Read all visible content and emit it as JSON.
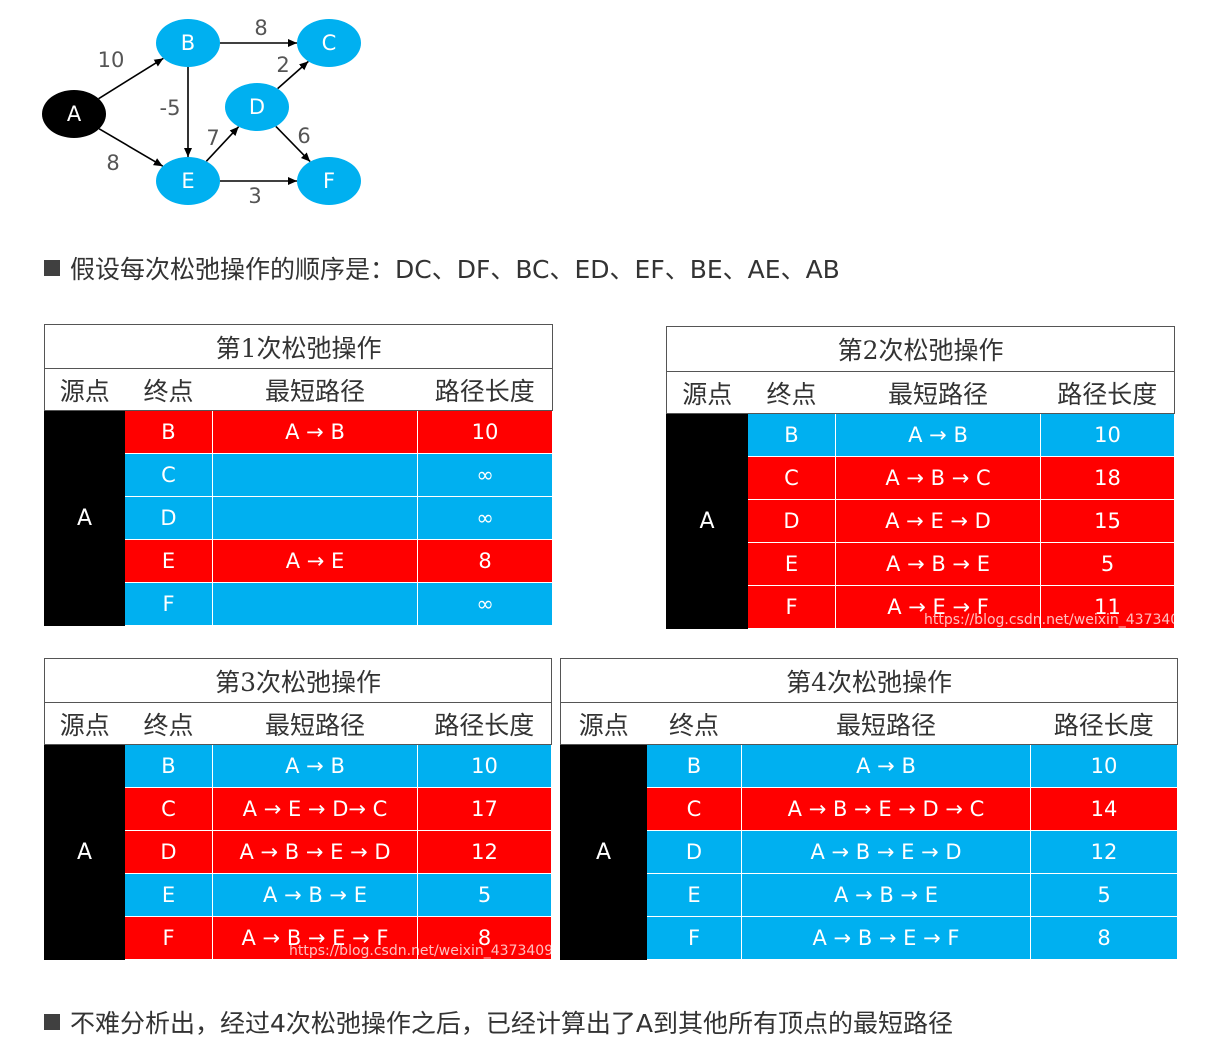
{
  "graph": {
    "nodes": [
      {
        "id": "A",
        "label": "A",
        "fill": "#000000"
      },
      {
        "id": "B",
        "label": "B",
        "fill": "#00b0f0"
      },
      {
        "id": "C",
        "label": "C",
        "fill": "#00b0f0"
      },
      {
        "id": "D",
        "label": "D",
        "fill": "#00b0f0"
      },
      {
        "id": "E",
        "label": "E",
        "fill": "#00b0f0"
      },
      {
        "id": "F",
        "label": "F",
        "fill": "#00b0f0"
      }
    ],
    "edges": [
      {
        "from": "A",
        "to": "B",
        "weight": "10"
      },
      {
        "from": "A",
        "to": "E",
        "weight": "8"
      },
      {
        "from": "B",
        "to": "C",
        "weight": "8"
      },
      {
        "from": "B",
        "to": "E",
        "weight": "-5"
      },
      {
        "from": "D",
        "to": "C",
        "weight": "2"
      },
      {
        "from": "E",
        "to": "D",
        "weight": "7"
      },
      {
        "from": "D",
        "to": "F",
        "weight": "6"
      },
      {
        "from": "E",
        "to": "F",
        "weight": "3"
      }
    ]
  },
  "bullet1": "假设每次松弛操作的顺序是：DC、DF、BC、ED、EF、BE、AE、AB",
  "bullet2": "不难分析出，经过4次松弛操作之后，已经计算出了A到其他所有顶点的最短路径",
  "headers": {
    "source": "源点",
    "target": "终点",
    "path": "最短路径",
    "length": "路径长度"
  },
  "colors": {
    "updated": "#ff0000",
    "unchanged": "#00b0f0",
    "source": "#000000"
  },
  "tables": [
    {
      "title": "第1次松弛操作",
      "source": "A",
      "rows": [
        {
          "target": "B",
          "path": "A → B",
          "length": "10",
          "color": "red"
        },
        {
          "target": "C",
          "path": "",
          "length": "∞",
          "color": "blue"
        },
        {
          "target": "D",
          "path": "",
          "length": "∞",
          "color": "blue"
        },
        {
          "target": "E",
          "path": "A → E",
          "length": "8",
          "color": "red"
        },
        {
          "target": "F",
          "path": "",
          "length": "∞",
          "color": "blue"
        }
      ]
    },
    {
      "title": "第2次松弛操作",
      "source": "A",
      "rows": [
        {
          "target": "B",
          "path": "A → B",
          "length": "10",
          "color": "blue"
        },
        {
          "target": "C",
          "path": "A → B → C",
          "length": "18",
          "color": "red"
        },
        {
          "target": "D",
          "path": "A → E → D",
          "length": "15",
          "color": "red"
        },
        {
          "target": "E",
          "path": "A → B → E",
          "length": "5",
          "color": "red"
        },
        {
          "target": "F",
          "path": "A → E → F",
          "length": "11",
          "color": "red"
        }
      ],
      "watermark": "https://blog.csdn.net/weixin_437340"
    },
    {
      "title": "第3次松弛操作",
      "source": "A",
      "rows": [
        {
          "target": "B",
          "path": "A → B",
          "length": "10",
          "color": "blue"
        },
        {
          "target": "C",
          "path": "A → E → D→ C",
          "length": "17",
          "color": "red"
        },
        {
          "target": "D",
          "path": "A → B → E → D",
          "length": "12",
          "color": "red"
        },
        {
          "target": "E",
          "path": "A → B → E",
          "length": "5",
          "color": "blue"
        },
        {
          "target": "F",
          "path": "A → B → E → F",
          "length": "8",
          "color": "red"
        }
      ],
      "watermark": "https://blog.csdn.net/weixin_4373409"
    },
    {
      "title": "第4次松弛操作",
      "source": "A",
      "rows": [
        {
          "target": "B",
          "path": "A → B",
          "length": "10",
          "color": "blue"
        },
        {
          "target": "C",
          "path": "A → B → E → D → C",
          "length": "14",
          "color": "red"
        },
        {
          "target": "D",
          "path": "A → B → E → D",
          "length": "12",
          "color": "blue"
        },
        {
          "target": "E",
          "path": "A → B → E",
          "length": "5",
          "color": "blue"
        },
        {
          "target": "F",
          "path": "A → B → E → F",
          "length": "8",
          "color": "blue"
        }
      ]
    }
  ]
}
